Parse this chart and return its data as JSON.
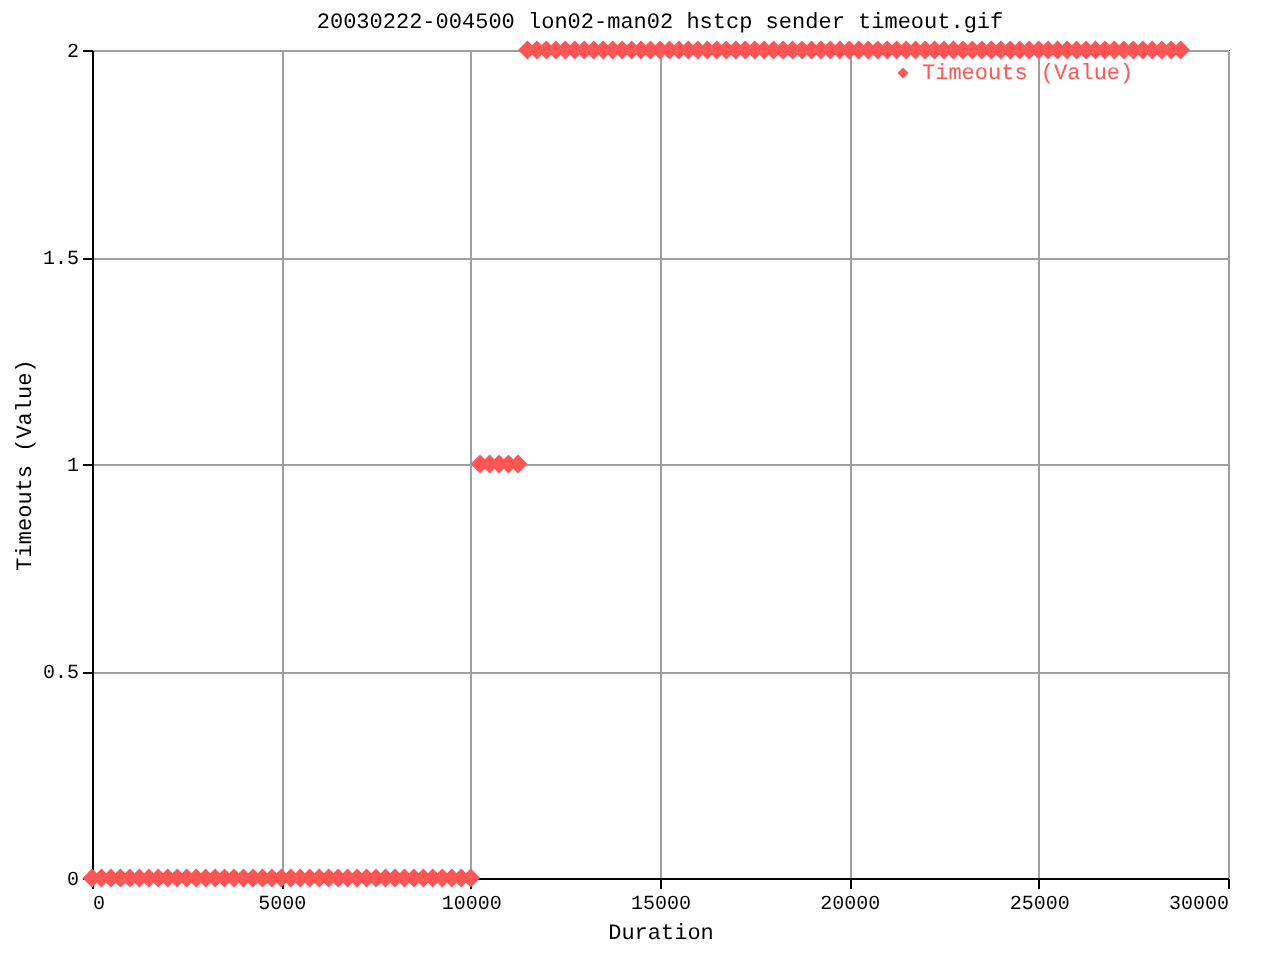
{
  "chart_data": {
    "type": "scatter",
    "title": "20030222-004500 lon02-man02 hstcp sender timeout.gif",
    "xlabel": "Duration",
    "ylabel": "Timeouts (Value)",
    "xlim": [
      0,
      30000
    ],
    "xticks": [
      0,
      5000,
      10000,
      15000,
      20000,
      25000,
      30000
    ],
    "ylim": [
      0,
      2
    ],
    "yticks": [
      0,
      0.5,
      1,
      1.5,
      2
    ],
    "grid": true,
    "legend": "top right",
    "marker": "diamond",
    "series": [
      {
        "name": "Timeouts (Value)",
        "color": "#ff5555",
        "x": [
          0,
          250,
          500,
          750,
          1000,
          1250,
          1500,
          1750,
          2000,
          2250,
          2500,
          2750,
          3000,
          3250,
          3500,
          3750,
          4000,
          4250,
          4500,
          4750,
          5000,
          5250,
          5500,
          5750,
          6000,
          6250,
          6500,
          6750,
          7000,
          7250,
          7500,
          7750,
          8000,
          8250,
          8500,
          8750,
          9000,
          9250,
          9500,
          9750,
          10000,
          10250,
          10500,
          10750,
          11000,
          11250,
          11500,
          11750,
          12000,
          12250,
          12500,
          12750,
          13000,
          13250,
          13500,
          13750,
          14000,
          14250,
          14500,
          14750,
          15000,
          15250,
          15500,
          15750,
          16000,
          16250,
          16500,
          16750,
          17000,
          17250,
          17500,
          17750,
          18000,
          18250,
          18500,
          18750,
          19000,
          19250,
          19500,
          19750,
          20000,
          20250,
          20500,
          20750,
          21000,
          21250,
          21500,
          21750,
          22000,
          22250,
          22500,
          22750,
          23000,
          23250,
          23500,
          23750,
          24000,
          24250,
          24500,
          24750,
          25000,
          25250,
          25500,
          25750,
          26000,
          26250,
          26500,
          26750,
          27000,
          27250,
          27500,
          27750,
          28000,
          28250,
          28500,
          28750
        ],
        "values": [
          0,
          0,
          0,
          0,
          0,
          0,
          0,
          0,
          0,
          0,
          0,
          0,
          0,
          0,
          0,
          0,
          0,
          0,
          0,
          0,
          0,
          0,
          0,
          0,
          0,
          0,
          0,
          0,
          0,
          0,
          0,
          0,
          0,
          0,
          0,
          0,
          0,
          0,
          0,
          0,
          0,
          1,
          1,
          1,
          1,
          1,
          2,
          2,
          2,
          2,
          2,
          2,
          2,
          2,
          2,
          2,
          2,
          2,
          2,
          2,
          2,
          2,
          2,
          2,
          2,
          2,
          2,
          2,
          2,
          2,
          2,
          2,
          2,
          2,
          2,
          2,
          2,
          2,
          2,
          2,
          2,
          2,
          2,
          2,
          2,
          2,
          2,
          2,
          2,
          2,
          2,
          2,
          2,
          2,
          2,
          2,
          2,
          2,
          2,
          2,
          2,
          2,
          2,
          2,
          2,
          2,
          2,
          2,
          2,
          2,
          2,
          2,
          2,
          2,
          2,
          2
        ]
      }
    ]
  }
}
